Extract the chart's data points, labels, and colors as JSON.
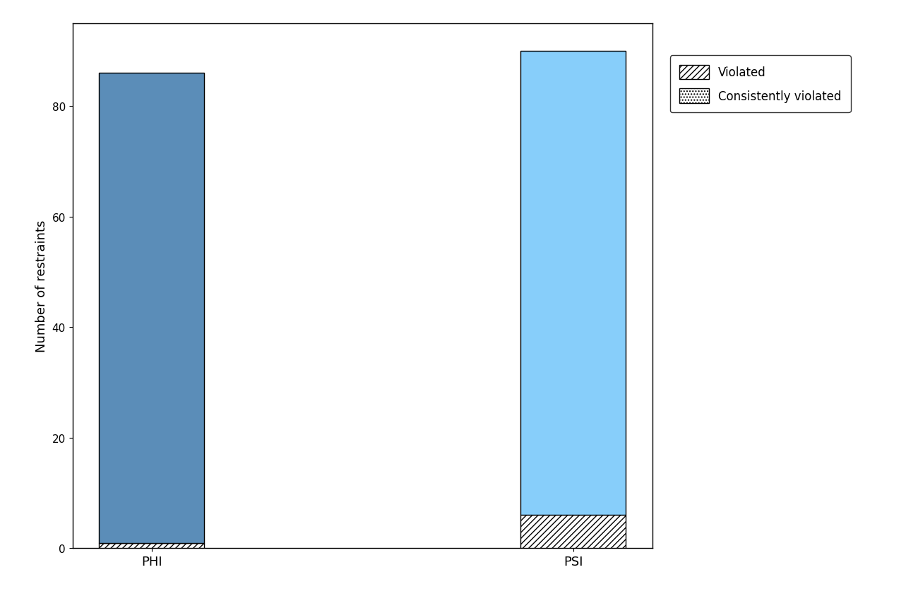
{
  "categories": [
    "PHI",
    "PSI"
  ],
  "total_values": [
    86,
    90
  ],
  "violated_values": [
    1,
    6
  ],
  "consistently_violated_values": [
    0,
    0
  ],
  "bar_colors": [
    "#5b8db8",
    "#87cefa"
  ],
  "hatch_color": "black",
  "ylabel": "Number of restraints",
  "ylim": [
    0,
    95
  ],
  "yticks": [
    0,
    20,
    40,
    60,
    80
  ],
  "legend_labels": [
    "Violated",
    "Consistently violated"
  ],
  "legend_hatches": [
    "////",
    "...."
  ],
  "bar_width": 0.25,
  "figsize": [
    12.83,
    8.45
  ],
  "dpi": 100,
  "background_color": "#ffffff",
  "edge_color": "black",
  "edge_linewidth": 1.0
}
